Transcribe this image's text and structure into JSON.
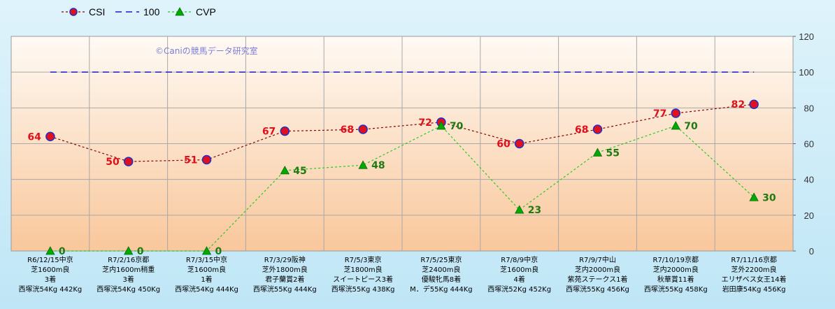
{
  "chart_data": {
    "type": "line",
    "categories": [
      [
        "R6/12/15中京",
        "芝1600m良",
        "3着",
        "西塚洸54Kg 442Kg"
      ],
      [
        "R7/2/16京都",
        "芝内1600m稍重",
        "3着",
        "西塚洸54Kg 450Kg"
      ],
      [
        "R7/3/15中京",
        "芝1600m良",
        "1着",
        "西塚洸54Kg 444Kg"
      ],
      [
        "R7/3/29阪神",
        "芝外1800m良",
        "君子蘭賞2着",
        "西塚洸55Kg 444Kg"
      ],
      [
        "R7/5/3東京",
        "芝1800m良",
        "スイートピース3着",
        "西塚洸55Kg 438Kg"
      ],
      [
        "R7/5/25東京",
        "芝2400m良",
        "優駿牝馬8着",
        "M．デ55Kg 444Kg"
      ],
      [
        "R7/8/9中京",
        "芝1600m良",
        "4着",
        "西塚洸52Kg 452Kg"
      ],
      [
        "R7/9/7中山",
        "芝内2000m良",
        "紫苑ステークス1着",
        "西塚洸55Kg 456Kg"
      ],
      [
        "R7/10/19京都",
        "芝内2000m良",
        "秋華賞11着",
        "西塚洸55Kg 458Kg"
      ],
      [
        "R7/11/16京都",
        "芝外2200m良",
        "エリザベス女王14着",
        "岩田康54Kg 456Kg"
      ]
    ],
    "series": [
      {
        "name": "CSI",
        "values": [
          64,
          50,
          51,
          67,
          68,
          72,
          60,
          68,
          77,
          82
        ],
        "color": "#8b0000",
        "marker_fill": "#e01020",
        "marker_stroke": "#2030c0",
        "label_color": "#e0101a"
      },
      {
        "name": "100",
        "values": [
          100,
          100,
          100,
          100,
          100,
          100,
          100,
          100,
          100,
          100
        ],
        "color": "#1a1acc"
      },
      {
        "name": "CVP",
        "values": [
          0,
          0,
          0,
          45,
          48,
          70,
          23,
          55,
          70,
          30
        ],
        "color": "#22cc22",
        "marker_fill": "#00aa00",
        "label_color": "#1f7a12"
      }
    ],
    "ylim": [
      0,
      120
    ],
    "yticks": [
      0,
      20,
      40,
      60,
      80,
      100,
      120
    ],
    "y_axis_side": "right",
    "grid": true,
    "legend": "top-left",
    "watermark": "©Caniの競馬データ研究室",
    "colors": {
      "plot_top": "#fefaf4",
      "plot_bottom": "#f9c79b",
      "background": "#cdebf8"
    }
  }
}
